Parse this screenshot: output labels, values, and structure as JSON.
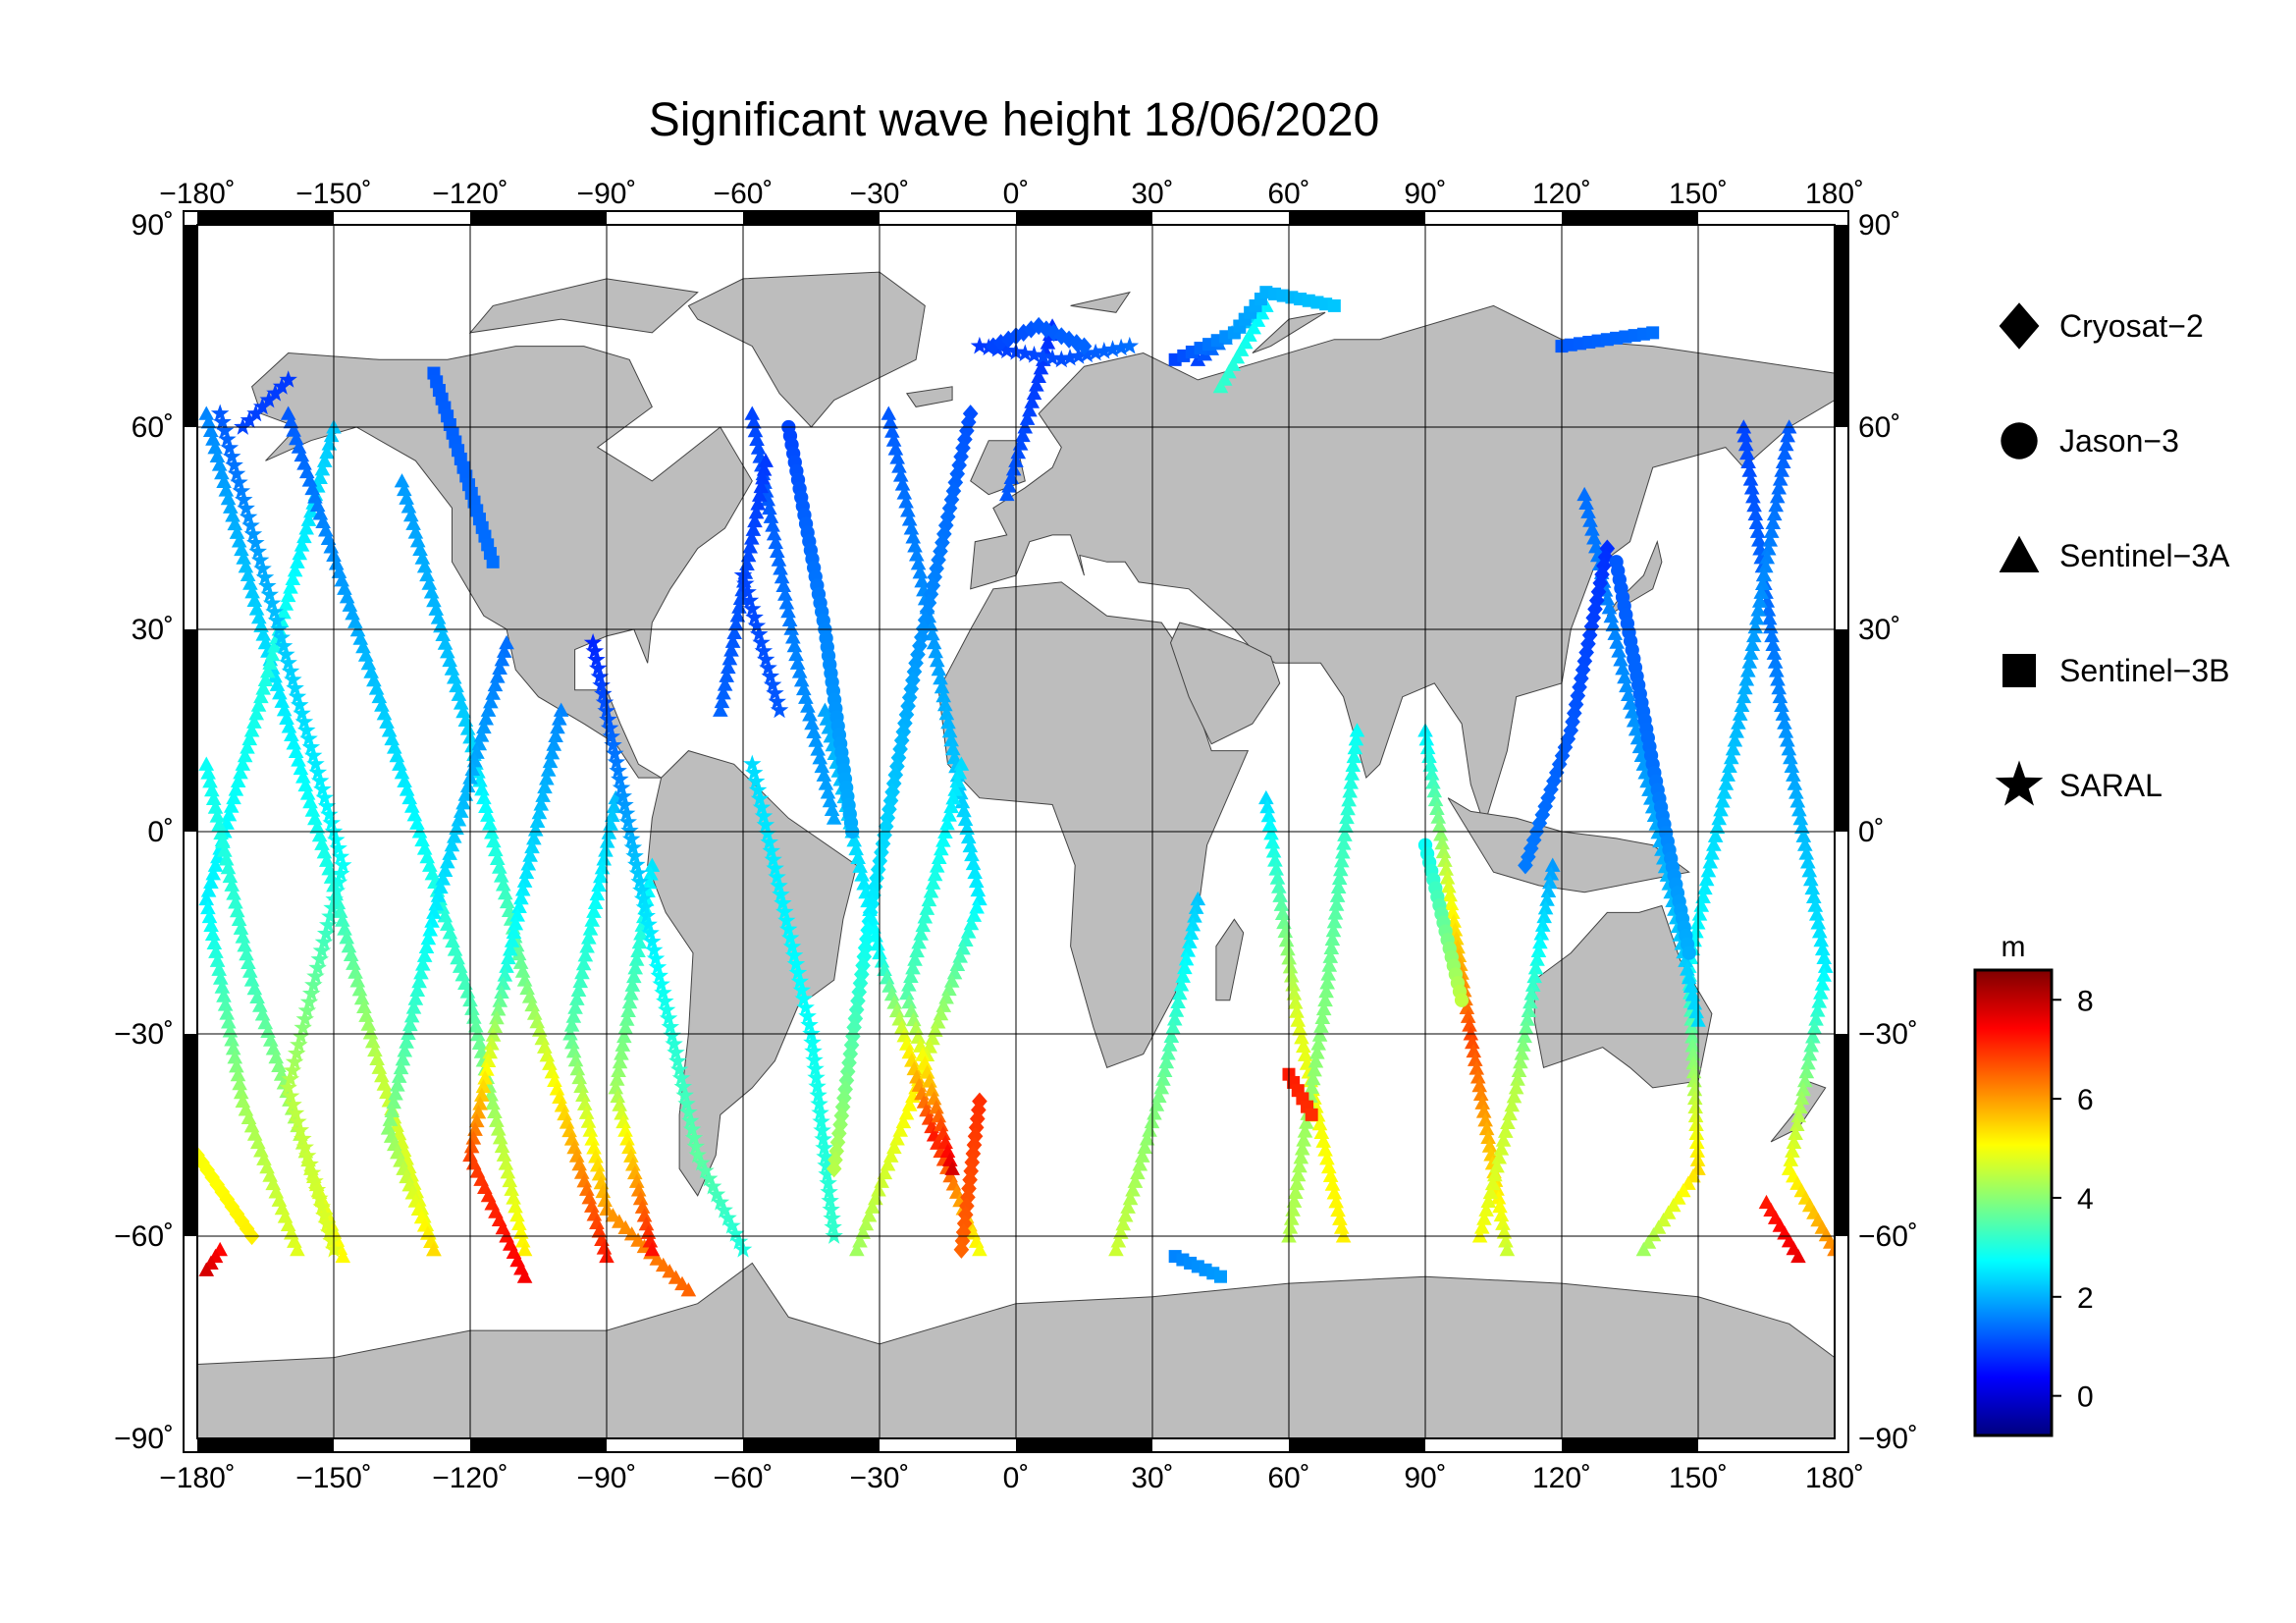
{
  "title": "Significant wave height 18/06/2020",
  "lon_ticks": [
    -180,
    -150,
    -120,
    -90,
    -60,
    -30,
    0,
    30,
    60,
    90,
    120,
    150,
    180
  ],
  "lat_ticks": [
    90,
    60,
    30,
    0,
    -30,
    -60,
    -90
  ],
  "lon_labels": [
    "−180˚",
    "−150˚",
    "−120˚",
    "−90˚",
    "−60˚",
    "−30˚",
    "0˚",
    "30˚",
    "60˚",
    "90˚",
    "120˚",
    "150˚",
    "180˚"
  ],
  "lat_labels": [
    "90˚",
    "60˚",
    "30˚",
    "0˚",
    "−30˚",
    "−60˚",
    "−90˚"
  ],
  "legend": {
    "items": [
      {
        "label": "Cryosat−2",
        "marker": "diamond"
      },
      {
        "label": "Jason−3",
        "marker": "circle"
      },
      {
        "label": "Sentinel−3A",
        "marker": "triangle"
      },
      {
        "label": "Sentinel−3B",
        "marker": "square"
      },
      {
        "label": "SARAL",
        "marker": "star"
      }
    ]
  },
  "colorbar": {
    "unit": "m",
    "min": -0.8,
    "max": 8.6,
    "ticks": [
      0,
      2,
      4,
      6,
      8
    ],
    "tick_labels": [
      "0",
      "2",
      "4",
      "6",
      "8"
    ],
    "colors": [
      "#00007f",
      "#0000ff",
      "#007fff",
      "#00ffff",
      "#7fff7f",
      "#ffff00",
      "#ff7f00",
      "#ff0000",
      "#7f0000"
    ]
  },
  "colors": {
    "land": "#bdbdbd",
    "ocean": "#ffffff",
    "frame": "#000000"
  },
  "tracks": [
    {
      "marker": "triangle",
      "points": [
        [
          -178,
          62
        ],
        [
          -165,
          28
        ],
        [
          -150,
          -8
        ],
        [
          -140,
          -35
        ],
        [
          -128,
          -62
        ]
      ],
      "hs": [
        1.6,
        2.4,
        3.0,
        4.5,
        5.0
      ]
    },
    {
      "marker": "triangle",
      "points": [
        [
          -150,
          60
        ],
        [
          -164,
          25
        ],
        [
          -178,
          -10
        ],
        [
          -170,
          -40
        ],
        [
          -158,
          -62
        ]
      ],
      "hs": [
        2.2,
        3.0,
        2.6,
        4.2,
        4.8
      ]
    },
    {
      "marker": "triangle",
      "points": [
        [
          -178,
          10
        ],
        [
          -168,
          -22
        ],
        [
          -155,
          -50
        ],
        [
          -148,
          -63
        ]
      ],
      "hs": [
        2.8,
        3.3,
        4.6,
        5.1
      ]
    },
    {
      "marker": "triangle",
      "points": [
        [
          -160,
          62
        ],
        [
          -140,
          20
        ],
        [
          -120,
          -25
        ],
        [
          -108,
          -62
        ]
      ],
      "hs": [
        1.2,
        2.2,
        3.4,
        5.2
      ]
    },
    {
      "marker": "triangle",
      "points": [
        [
          -135,
          52
        ],
        [
          -120,
          14
        ],
        [
          -108,
          -22
        ],
        [
          -90,
          -63
        ]
      ],
      "hs": [
        1.8,
        2.3,
        3.8,
        7.2
      ]
    },
    {
      "marker": "triangle",
      "points": [
        [
          -112,
          28
        ],
        [
          -128,
          -12
        ],
        [
          -138,
          -44
        ],
        [
          -128,
          -62
        ]
      ],
      "hs": [
        1.4,
        2.6,
        4.0,
        5.4
      ]
    },
    {
      "marker": "triangle",
      "points": [
        [
          -100,
          18
        ],
        [
          -112,
          -20
        ],
        [
          -120,
          -48
        ],
        [
          -108,
          -66
        ]
      ],
      "hs": [
        1.6,
        3.0,
        6.8,
        7.5
      ]
    },
    {
      "marker": "triangle",
      "points": [
        [
          -88,
          5
        ],
        [
          -98,
          -30
        ],
        [
          -90,
          -56
        ],
        [
          -72,
          -68
        ]
      ],
      "hs": [
        2.1,
        3.6,
        6.0,
        6.5
      ]
    },
    {
      "marker": "triangle",
      "points": [
        [
          -80,
          -5
        ],
        [
          -88,
          -38
        ],
        [
          -80,
          -62
        ]
      ],
      "hs": [
        2.5,
        4.2,
        7.3
      ]
    },
    {
      "marker": "triangle",
      "points": [
        [
          -58,
          62
        ],
        [
          -48,
          25
        ],
        [
          -40,
          2
        ]
      ],
      "hs": [
        1.0,
        1.6,
        1.9
      ]
    },
    {
      "marker": "triangle",
      "points": [
        [
          -55,
          55
        ],
        [
          -65,
          18
        ]
      ],
      "hs": [
        0.9,
        1.3
      ]
    },
    {
      "marker": "triangle",
      "points": [
        [
          -28,
          62
        ],
        [
          -18,
          28
        ],
        [
          -8,
          -10
        ],
        [
          -22,
          -38
        ],
        [
          -35,
          -62
        ]
      ],
      "hs": [
        1.2,
        1.8,
        2.6,
        5.2,
        4.2
      ]
    },
    {
      "marker": "triangle",
      "points": [
        [
          -42,
          18
        ],
        [
          -30,
          -18
        ],
        [
          -18,
          -45
        ],
        [
          -8,
          -62
        ]
      ],
      "hs": [
        1.9,
        2.8,
        7.2,
        5.0
      ]
    },
    {
      "marker": "triangle",
      "points": [
        [
          -12,
          10
        ],
        [
          -24,
          -24
        ],
        [
          -14,
          -50
        ]
      ],
      "hs": [
        2.4,
        3.5,
        7.8
      ]
    },
    {
      "marker": "triangle",
      "points": [
        [
          8,
          75
        ],
        [
          -2,
          50
        ]
      ],
      "hs": [
        0.8,
        1.2
      ]
    },
    {
      "marker": "triangle",
      "points": [
        [
          40,
          -10
        ],
        [
          32,
          -38
        ],
        [
          22,
          -62
        ]
      ],
      "hs": [
        2.2,
        3.8,
        4.6
      ]
    },
    {
      "marker": "triangle",
      "points": [
        [
          55,
          5
        ],
        [
          62,
          -28
        ],
        [
          72,
          -60
        ]
      ],
      "hs": [
        2.4,
        4.8,
        5.2
      ]
    },
    {
      "marker": "triangle",
      "points": [
        [
          75,
          15
        ],
        [
          68,
          -25
        ],
        [
          60,
          -60
        ]
      ],
      "hs": [
        2.8,
        3.9,
        4.4
      ]
    },
    {
      "marker": "triangle",
      "points": [
        [
          90,
          15
        ],
        [
          100,
          -30
        ],
        [
          108,
          -62
        ]
      ],
      "hs": [
        2.6,
        6.8,
        4.6
      ]
    },
    {
      "marker": "triangle",
      "points": [
        [
          118,
          -5
        ],
        [
          110,
          -38
        ],
        [
          102,
          -60
        ]
      ],
      "hs": [
        1.8,
        4.4,
        5.0
      ]
    },
    {
      "marker": "triangle",
      "points": [
        [
          160,
          60
        ],
        [
          168,
          20
        ],
        [
          178,
          -20
        ],
        [
          170,
          -50
        ],
        [
          180,
          -62
        ]
      ],
      "hs": [
        1.0,
        1.6,
        2.6,
        5.0,
        6.2
      ]
    },
    {
      "marker": "triangle",
      "points": [
        [
          170,
          60
        ],
        [
          160,
          20
        ],
        [
          148,
          -20
        ],
        [
          150,
          -50
        ],
        [
          138,
          -62
        ]
      ],
      "hs": [
        1.2,
        2.0,
        2.8,
        5.4,
        4.2
      ]
    },
    {
      "marker": "triangle",
      "points": [
        [
          125,
          50
        ],
        [
          138,
          10
        ],
        [
          150,
          -28
        ]
      ],
      "hs": [
        1.4,
        1.8,
        2.4
      ]
    },
    {
      "marker": "triangle",
      "points": [
        [
          40,
          70
        ],
        [
          55,
          78
        ],
        [
          45,
          66
        ]
      ],
      "hs": [
        1.0,
        2.6,
        3.2
      ]
    },
    {
      "marker": "triangle",
      "points": [
        [
          -175,
          -62
        ],
        [
          -178,
          -65
        ]
      ],
      "hs": [
        7.4,
        7.8
      ]
    },
    {
      "marker": "triangle",
      "points": [
        [
          165,
          -55
        ],
        [
          172,
          -63
        ]
      ],
      "hs": [
        7.2,
        7.6
      ]
    },
    {
      "marker": "star",
      "points": [
        [
          -175,
          62
        ],
        [
          -162,
          30
        ],
        [
          -148,
          -5
        ],
        [
          -160,
          -38
        ],
        [
          -150,
          -62
        ]
      ],
      "hs": [
        1.2,
        2.2,
        2.8,
        4.4,
        4.8
      ]
    },
    {
      "marker": "star",
      "points": [
        [
          -160,
          67
        ],
        [
          -170,
          60
        ]
      ],
      "hs": [
        0.9,
        1.0
      ]
    },
    {
      "marker": "star",
      "points": [
        [
          -93,
          28
        ],
        [
          -82,
          -10
        ],
        [
          -70,
          -48
        ],
        [
          -60,
          -62
        ]
      ],
      "hs": [
        0.7,
        2.4,
        3.6,
        3.0
      ]
    },
    {
      "marker": "star",
      "points": [
        [
          -8,
          72
        ],
        [
          10,
          70
        ],
        [
          25,
          72
        ]
      ],
      "hs": [
        0.9,
        1.1,
        1.4
      ]
    },
    {
      "marker": "star",
      "points": [
        [
          -58,
          10
        ],
        [
          -45,
          -30
        ],
        [
          -40,
          -60
        ]
      ],
      "hs": [
        2.4,
        2.8,
        3.2
      ]
    },
    {
      "marker": "star",
      "points": [
        [
          -60,
          38
        ],
        [
          -52,
          18
        ]
      ],
      "hs": [
        1.0,
        1.2
      ]
    },
    {
      "marker": "diamond",
      "points": [
        [
          -10,
          62
        ],
        [
          -22,
          25
        ],
        [
          -32,
          -12
        ],
        [
          -40,
          -50
        ]
      ],
      "hs": [
        1.1,
        1.8,
        2.6,
        4.4
      ]
    },
    {
      "marker": "diamond",
      "points": [
        [
          -5,
          72
        ],
        [
          5,
          75
        ],
        [
          15,
          72
        ]
      ],
      "hs": [
        1.0,
        1.2,
        1.3
      ]
    },
    {
      "marker": "diamond",
      "points": [
        [
          -180,
          -48
        ],
        [
          -168,
          -60
        ]
      ],
      "hs": [
        5.0,
        5.2
      ]
    },
    {
      "marker": "diamond",
      "points": [
        [
          130,
          42
        ],
        [
          122,
          15
        ],
        [
          112,
          -5
        ]
      ],
      "hs": [
        0.8,
        1.2,
        1.5
      ]
    },
    {
      "marker": "diamond",
      "points": [
        [
          -8,
          -40
        ],
        [
          -12,
          -62
        ]
      ],
      "hs": [
        7.0,
        6.5
      ]
    },
    {
      "marker": "square",
      "points": [
        [
          -128,
          68
        ],
        [
          -115,
          40
        ]
      ],
      "hs": [
        1.2,
        1.4
      ]
    },
    {
      "marker": "square",
      "points": [
        [
          35,
          70
        ],
        [
          48,
          74
        ],
        [
          55,
          80
        ],
        [
          70,
          78
        ]
      ],
      "hs": [
        1.0,
        1.8,
        2.0,
        2.2
      ]
    },
    {
      "marker": "square",
      "points": [
        [
          60,
          -36
        ],
        [
          65,
          -42
        ]
      ],
      "hs": [
        7.2,
        7.0
      ]
    },
    {
      "marker": "square",
      "points": [
        [
          35,
          -63
        ],
        [
          45,
          -66
        ]
      ],
      "hs": [
        1.6,
        1.8
      ]
    },
    {
      "marker": "square",
      "points": [
        [
          120,
          72
        ],
        [
          140,
          74
        ]
      ],
      "hs": [
        1.2,
        1.4
      ]
    },
    {
      "marker": "circle",
      "points": [
        [
          -50,
          60
        ],
        [
          -42,
          30
        ],
        [
          -36,
          0
        ]
      ],
      "hs": [
        1.0,
        1.6,
        2.0
      ]
    },
    {
      "marker": "circle",
      "points": [
        [
          132,
          40
        ],
        [
          140,
          10
        ],
        [
          148,
          -18
        ]
      ],
      "hs": [
        1.2,
        1.4,
        2.0
      ]
    },
    {
      "marker": "circle",
      "points": [
        [
          90,
          -2
        ],
        [
          98,
          -25
        ]
      ],
      "hs": [
        2.8,
        4.5
      ]
    }
  ]
}
